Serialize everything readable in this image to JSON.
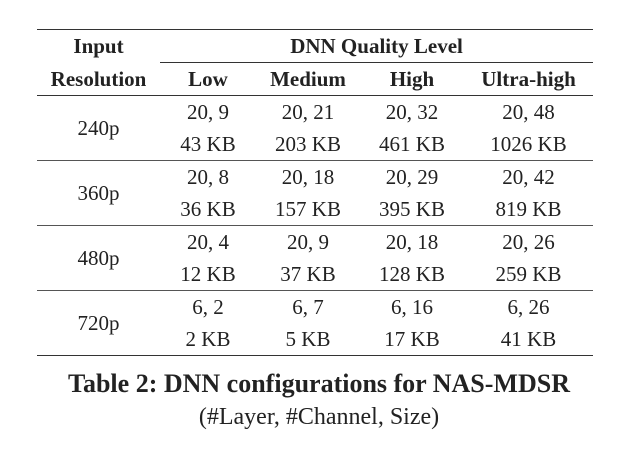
{
  "table": {
    "header": {
      "input_line1": "Input",
      "input_line2": "Resolution",
      "group": "DNN Quality Level",
      "levels": [
        "Low",
        "Medium",
        "High",
        "Ultra-high"
      ]
    },
    "rows": [
      {
        "resolution": "240p",
        "layers_channels": [
          "20, 9",
          "20, 21",
          "20, 32",
          "20, 48"
        ],
        "sizes": [
          "43 KB",
          "203 KB",
          "461 KB",
          "1026 KB"
        ]
      },
      {
        "resolution": "360p",
        "layers_channels": [
          "20, 8",
          "20, 18",
          "20, 29",
          "20, 42"
        ],
        "sizes": [
          "36 KB",
          "157 KB",
          "395 KB",
          "819 KB"
        ]
      },
      {
        "resolution": "480p",
        "layers_channels": [
          "20, 4",
          "20, 9",
          "20, 18",
          "20, 26"
        ],
        "sizes": [
          "12 KB",
          "37 KB",
          "128 KB",
          "259 KB"
        ]
      },
      {
        "resolution": "720p",
        "layers_channels": [
          "6, 2",
          "6, 7",
          "6, 16",
          "6, 26"
        ],
        "sizes": [
          "2 KB",
          "5 KB",
          "17 KB",
          "41 KB"
        ]
      }
    ]
  },
  "caption": {
    "title": "Table 2: DNN configurations for NAS-MDSR",
    "subtitle": "(#Layer, #Channel, Size)"
  }
}
